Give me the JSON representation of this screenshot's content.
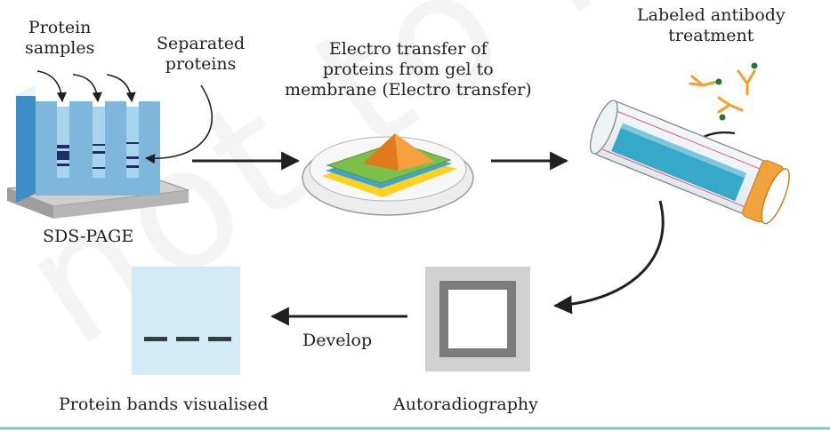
{
  "labels": {
    "protein_samples": [
      "Protein",
      "samples"
    ],
    "separated_proteins": [
      "Separated",
      "proteins"
    ],
    "electro_transfer": [
      "Electro transfer of",
      "proteins from gel to",
      "membrane (Electro transfer)"
    ],
    "labeled_antibody": [
      "Labeled antibody",
      "treatment"
    ],
    "sds_page": "SDS-PAGE",
    "develop": "Develop",
    "protein_bands": "Protein bands visualised",
    "autoradiography": "Autoradiography"
  },
  "watermark": "not to be",
  "colors": {
    "gel_blue": "#7fb7dc",
    "gel_light": "#a9d4ee",
    "band_navy": "#1f2d6b",
    "base_gray": "#b9b9b9",
    "membrane_green": "#7cc04a",
    "membrane_yellow": "#ffd21f",
    "pyramid_orange": "#f28c28",
    "antibody_orange": "#f0a02c",
    "label_green": "#1f7a2a",
    "tube_cyan": "#36a9c9",
    "tube_cap": "#f2a23a",
    "autorad_gray": "#7c7c7c",
    "autorad_light": "#d0d0d0",
    "band_panel": "#d3ebf7",
    "arrow": "#231f20",
    "rule_teal": "#7fc6c8"
  }
}
